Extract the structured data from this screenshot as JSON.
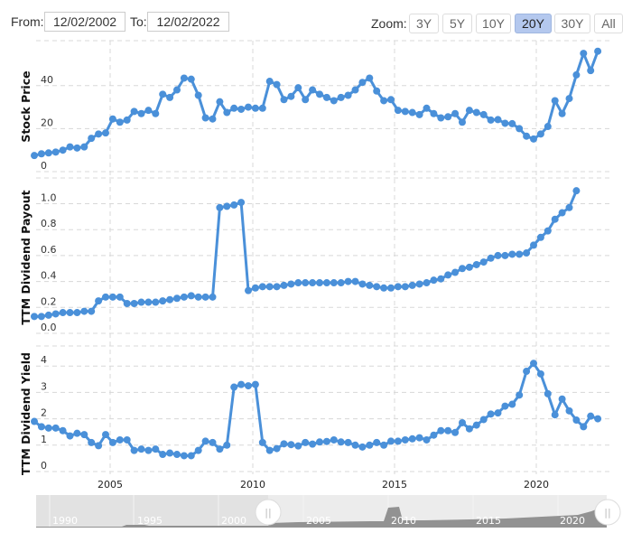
{
  "controls": {
    "from_label": "From:",
    "from_value": "12/02/2002",
    "to_label": "To:",
    "to_value": "12/02/2022",
    "zoom_label": "Zoom:",
    "zoom_buttons": [
      {
        "label": "3Y",
        "active": false
      },
      {
        "label": "5Y",
        "active": false
      },
      {
        "label": "10Y",
        "active": false
      },
      {
        "label": "20Y",
        "active": true
      },
      {
        "label": "30Y",
        "active": false
      },
      {
        "label": "All",
        "active": false
      }
    ]
  },
  "colors": {
    "series": "#4a90d9",
    "active_zoom": "#b4c8ee",
    "grid": "#d8d8d8",
    "navigator_bg": "#e6e6e6",
    "navigator_fill": "#808080"
  },
  "x_axis": {
    "ticks": [
      "2005",
      "2010",
      "2015",
      "2020"
    ]
  },
  "navigator": {
    "ticks": [
      "1990",
      "1995",
      "2000",
      "2005",
      "2010",
      "2015",
      "2020"
    ],
    "handle_glyph": "||"
  },
  "chart_data": [
    {
      "type": "line",
      "title": "",
      "ylabel": "Stock Price",
      "xlabel": "",
      "ylim": [
        0,
        60
      ],
      "yticks": [
        "0",
        "20",
        "40"
      ],
      "grid": true,
      "x_start": "2002-12",
      "x_step": "quarter",
      "values": [
        7.5,
        8.3,
        8.7,
        9.1,
        10,
        11.5,
        11,
        11.5,
        15.5,
        17.5,
        18,
        24.5,
        23,
        24,
        28,
        27,
        28.5,
        27,
        36,
        34.5,
        38,
        43.5,
        43,
        35.5,
        25,
        24.5,
        32.5,
        27.5,
        29.5,
        29,
        30,
        29.5,
        29.5,
        42,
        40.5,
        33.5,
        35,
        39,
        33.5,
        38,
        36,
        34.5,
        33,
        34.5,
        35.5,
        38,
        41.5,
        43.5,
        37.5,
        33,
        33.5,
        28.5,
        28,
        27.5,
        26.5,
        29.5,
        27,
        25,
        25.5,
        27,
        23,
        28.5,
        27.5,
        26.5,
        24,
        24.2,
        22.5,
        22.3,
        20,
        16.5,
        15.2,
        17.5,
        21,
        33,
        27,
        34,
        45,
        55,
        47,
        56
      ]
    },
    {
      "type": "line",
      "title": "",
      "ylabel": "TTM Dividend Payout",
      "xlabel": "",
      "ylim": [
        0,
        1.1
      ],
      "yticks": [
        "0.0",
        "0.2",
        "0.4",
        "0.6",
        "0.8",
        "1.0"
      ],
      "grid": true,
      "x_start": "2002-12",
      "x_step": "quarter",
      "values": [
        0.13,
        0.13,
        0.14,
        0.15,
        0.16,
        0.16,
        0.16,
        0.17,
        0.17,
        0.25,
        0.28,
        0.28,
        0.28,
        0.23,
        0.23,
        0.24,
        0.24,
        0.24,
        0.25,
        0.26,
        0.27,
        0.28,
        0.29,
        0.28,
        0.28,
        0.28,
        0.97,
        0.98,
        0.99,
        1.01,
        0.33,
        0.35,
        0.36,
        0.36,
        0.36,
        0.37,
        0.38,
        0.39,
        0.39,
        0.39,
        0.39,
        0.39,
        0.39,
        0.39,
        0.4,
        0.4,
        0.38,
        0.37,
        0.36,
        0.35,
        0.35,
        0.36,
        0.36,
        0.37,
        0.38,
        0.39,
        0.41,
        0.42,
        0.45,
        0.47,
        0.5,
        0.51,
        0.53,
        0.55,
        0.58,
        0.6,
        0.6,
        0.61,
        0.61,
        0.62,
        0.68,
        0.74,
        0.79,
        0.88,
        0.93,
        0.97,
        1.1
      ]
    },
    {
      "type": "line",
      "title": "",
      "ylabel": "TTM Dividend Yield",
      "xlabel": "",
      "ylim": [
        0,
        4.6
      ],
      "yticks": [
        "0",
        "1",
        "2",
        "3",
        "4"
      ],
      "grid": true,
      "x_start": "2002-12",
      "x_step": "quarter",
      "values": [
        1.9,
        1.7,
        1.65,
        1.65,
        1.55,
        1.35,
        1.45,
        1.4,
        1.1,
        0.98,
        1.4,
        1.1,
        1.2,
        1.2,
        0.8,
        0.85,
        0.8,
        0.85,
        0.65,
        0.7,
        0.65,
        0.6,
        0.6,
        0.8,
        1.15,
        1.1,
        0.85,
        1.0,
        3.2,
        3.3,
        3.25,
        3.3,
        1.1,
        0.8,
        0.87,
        1.05,
        1.02,
        0.97,
        1.1,
        1.04,
        1.12,
        1.14,
        1.2,
        1.12,
        1.1,
        1.0,
        0.93,
        1.0,
        1.1,
        1.0,
        1.15,
        1.15,
        1.2,
        1.24,
        1.28,
        1.2,
        1.38,
        1.55,
        1.55,
        1.48,
        1.85,
        1.62,
        1.76,
        1.97,
        2.18,
        2.22,
        2.48,
        2.55,
        2.9,
        3.8,
        4.1,
        3.7,
        2.95,
        2.15,
        2.75,
        2.3,
        1.95,
        1.7,
        2.1,
        2.0
      ]
    }
  ]
}
